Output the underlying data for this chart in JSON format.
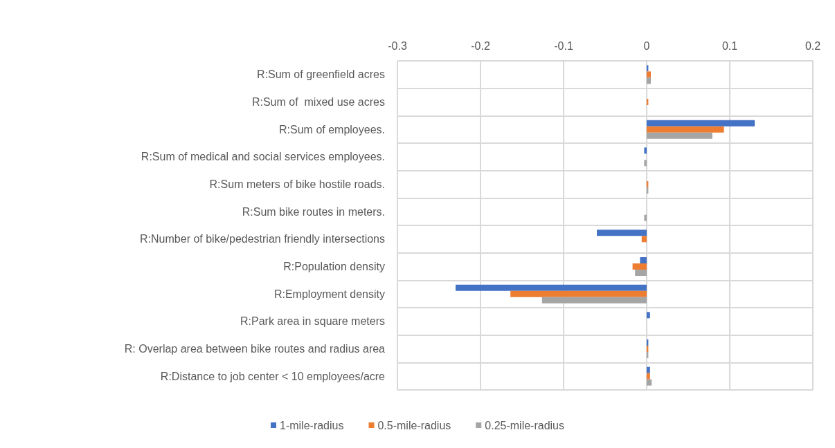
{
  "chart_data": {
    "type": "bar",
    "orientation": "horizontal",
    "categories": [
      "R:Sum of greenfield acres",
      "R:Sum of  mixed use acres",
      "R:Sum of employees.",
      "R:Sum of medical and social services employees.",
      "R:Sum meters of bike hostile roads.",
      "R:Sum bike routes in meters.",
      "R:Number of bike/pedestrian friendly intersections",
      "R:Population density",
      "R:Employment density",
      "R:Park area in square meters",
      "R: Overlap area between bike routes and radius area",
      "R:Distance to job center < 10 employees/acre"
    ],
    "series": [
      {
        "name": "1-mile-radius",
        "color": "#4472c4",
        "values": [
          0.002,
          null,
          0.13,
          -0.003,
          null,
          null,
          -0.06,
          -0.008,
          -0.23,
          0.004,
          0.002,
          0.004
        ]
      },
      {
        "name": "0.5-mile-radius",
        "color": "#ed7d31",
        "values": [
          0.005,
          0.002,
          0.093,
          null,
          0.002,
          null,
          -0.006,
          -0.017,
          -0.164,
          null,
          0.002,
          0.004
        ]
      },
      {
        "name": "0.25-mile-radius",
        "color": "#a5a5a5",
        "values": [
          0.005,
          null,
          0.079,
          -0.003,
          0.002,
          -0.003,
          null,
          -0.014,
          -0.126,
          null,
          0.002,
          0.006
        ]
      }
    ],
    "xlim": [
      -0.3,
      0.2
    ],
    "xticks": [
      -0.3,
      -0.2,
      -0.1,
      0,
      0.1,
      0.2
    ],
    "grid": true,
    "legend": "bottom"
  }
}
